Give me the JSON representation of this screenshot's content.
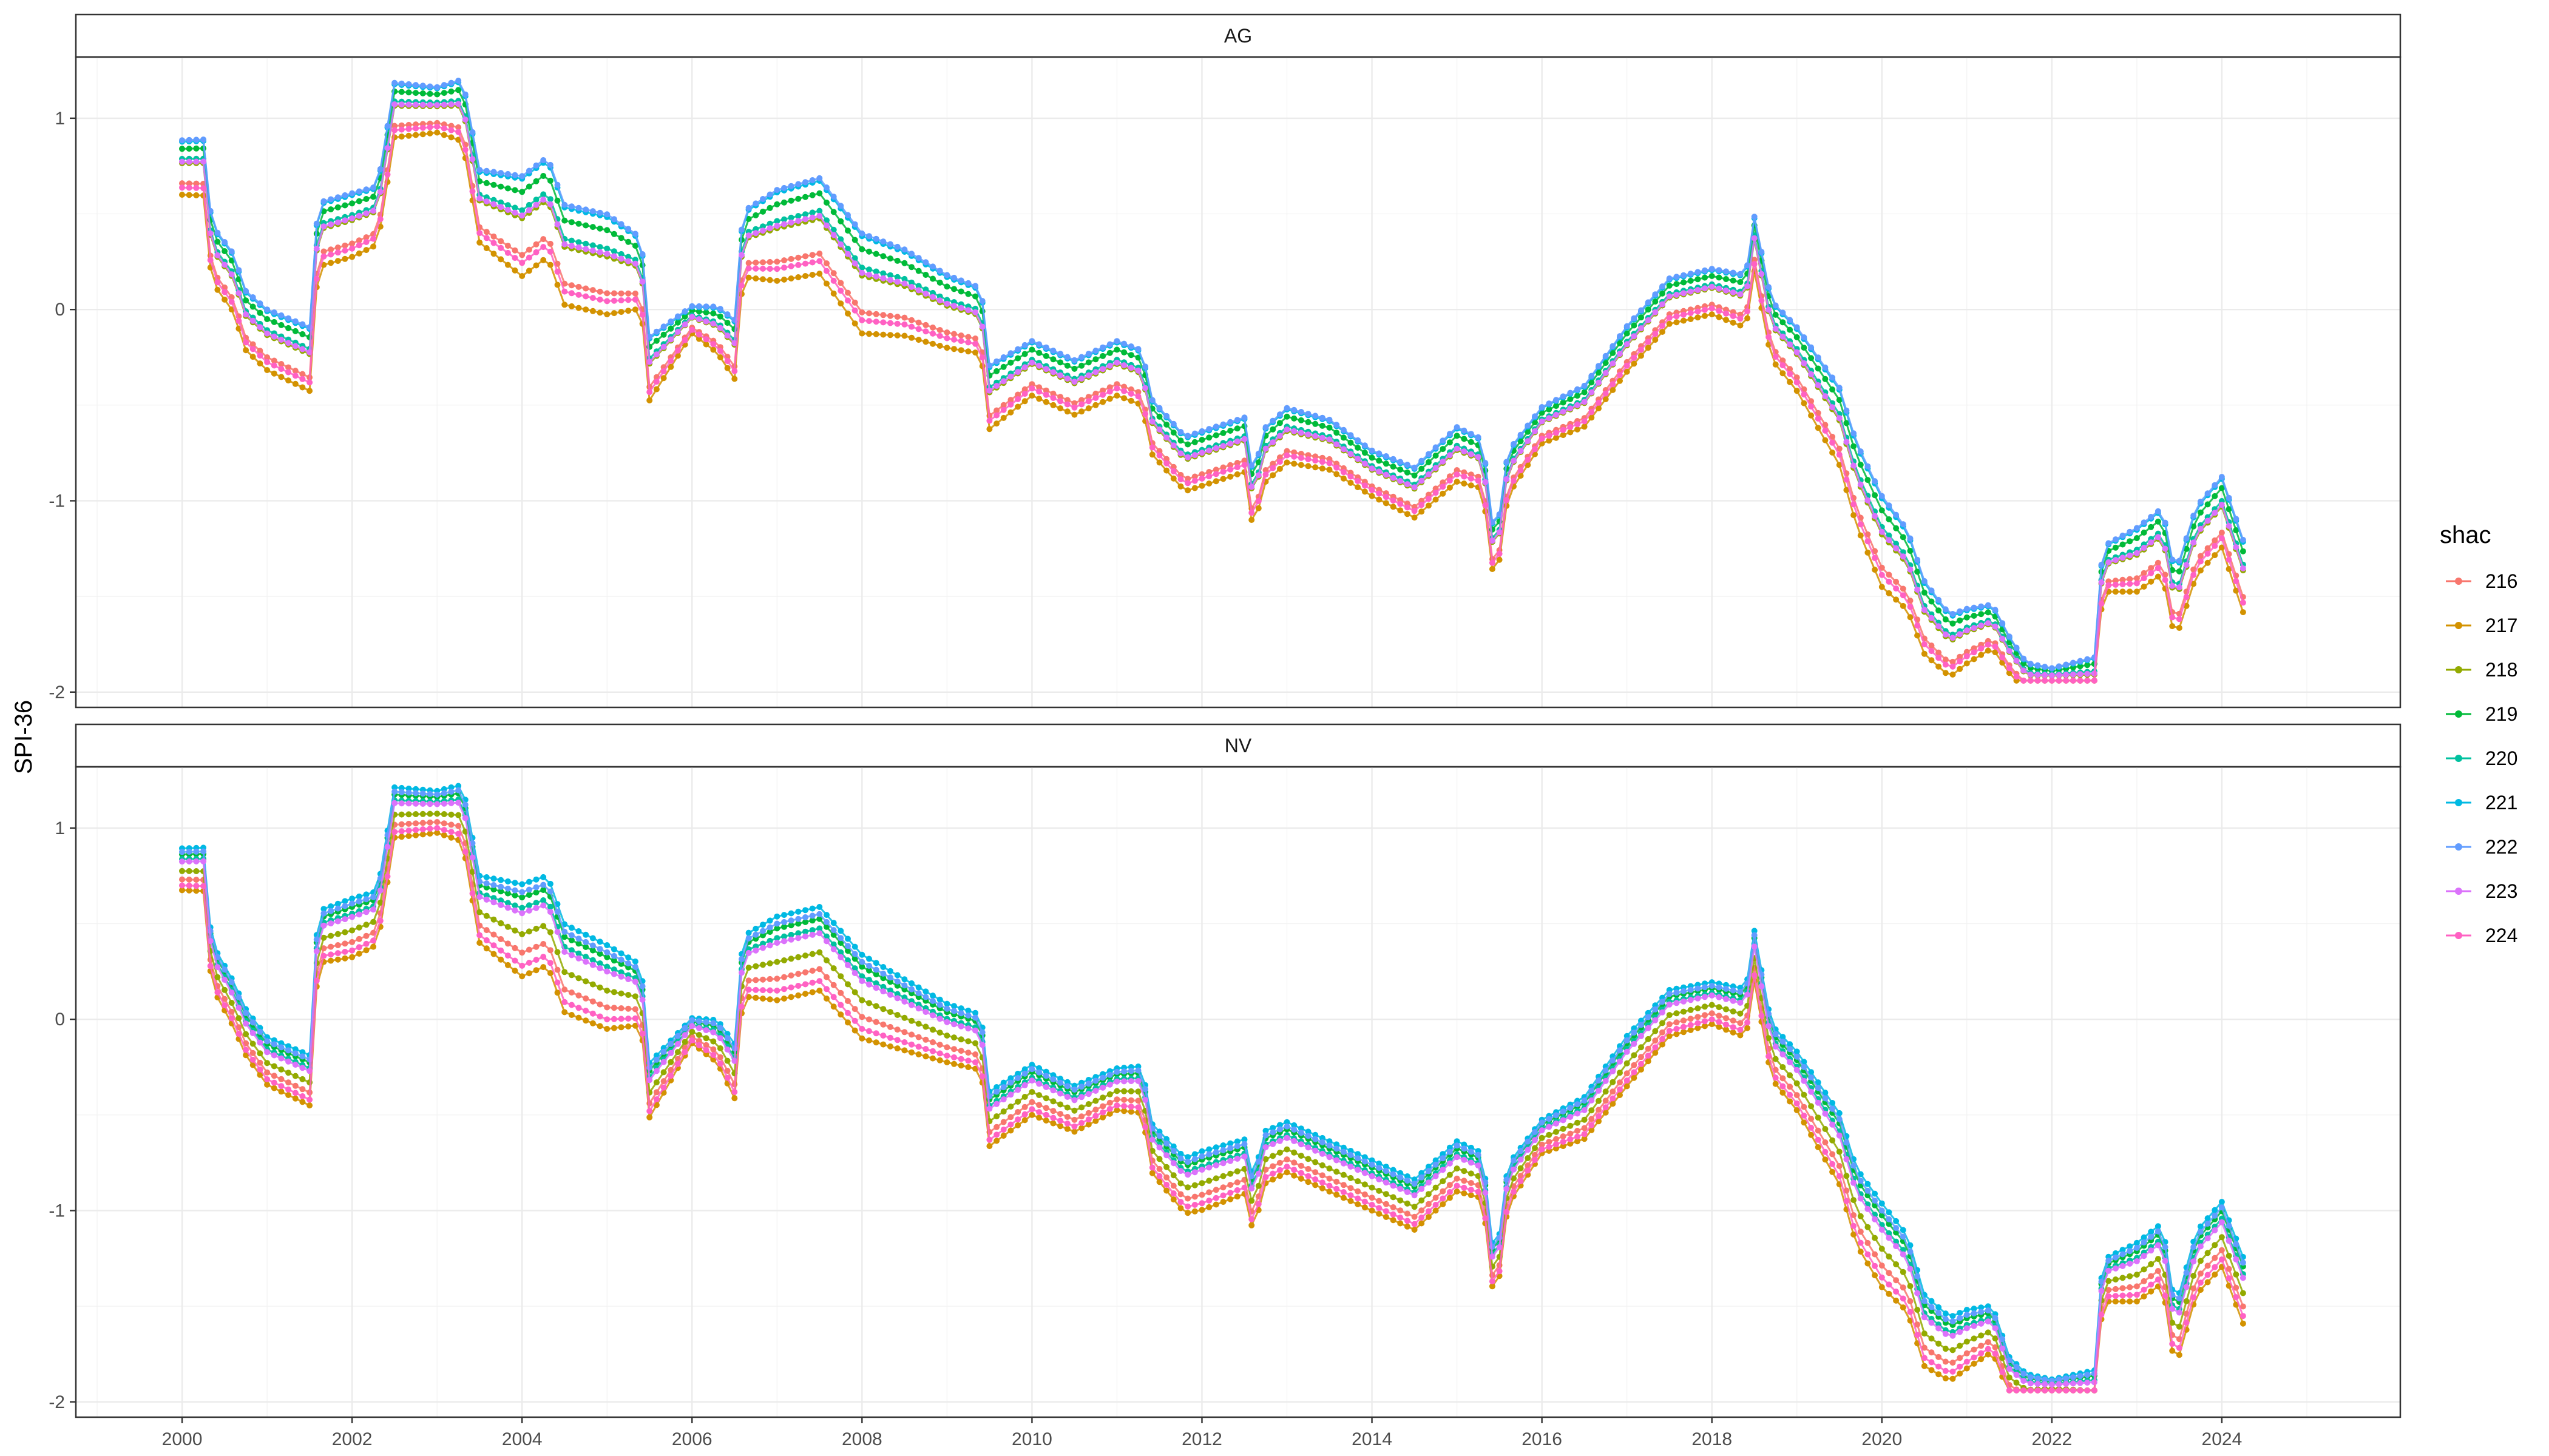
{
  "chart_data": {
    "type": "line",
    "ylabel": "SPI-36",
    "xlabel": "",
    "x_ticks": [
      2000,
      2002,
      2004,
      2006,
      2008,
      2010,
      2012,
      2014,
      2016,
      2018,
      2020,
      2022,
      2024
    ],
    "y_ticks": [
      -2,
      -1,
      0,
      1
    ],
    "xlim": [
      1998.75,
      2026.1
    ],
    "ylim": [
      -2.08,
      1.32
    ],
    "grid": true,
    "legend": {
      "title": "shac",
      "position": "right"
    },
    "colors": {
      "216": "#F8766D",
      "217": "#D39200",
      "218": "#93AA00",
      "219": "#00BA38",
      "220": "#00C19F",
      "221": "#00B9E3",
      "222": "#619CFF",
      "223": "#DB72FB",
      "224": "#FF61C3"
    },
    "series_names": [
      "216",
      "217",
      "218",
      "219",
      "220",
      "221",
      "222",
      "223",
      "224"
    ],
    "panels": [
      {
        "label": "AG",
        "base": [
          [
            2000.0,
            0.75
          ],
          [
            2000.25,
            0.75
          ],
          [
            2000.35,
            0.3
          ],
          [
            2000.6,
            0.15
          ],
          [
            2000.75,
            -0.05
          ],
          [
            2001.0,
            -0.15
          ],
          [
            2001.25,
            -0.2
          ],
          [
            2001.5,
            -0.25
          ],
          [
            2001.6,
            0.4
          ],
          [
            2002.0,
            0.45
          ],
          [
            2002.3,
            0.5
          ],
          [
            2002.5,
            1.05
          ],
          [
            2003.0,
            1.05
          ],
          [
            2003.3,
            1.05
          ],
          [
            2003.5,
            0.55
          ],
          [
            2004.0,
            0.45
          ],
          [
            2004.3,
            0.55
          ],
          [
            2004.5,
            0.3
          ],
          [
            2005.0,
            0.25
          ],
          [
            2005.4,
            0.2
          ],
          [
            2005.5,
            -0.3
          ],
          [
            2006.0,
            -0.05
          ],
          [
            2006.3,
            -0.1
          ],
          [
            2006.5,
            -0.2
          ],
          [
            2006.6,
            0.35
          ],
          [
            2007.0,
            0.4
          ],
          [
            2007.5,
            0.45
          ],
          [
            2008.0,
            0.15
          ],
          [
            2008.5,
            0.1
          ],
          [
            2009.0,
            0.0
          ],
          [
            2009.4,
            -0.05
          ],
          [
            2009.5,
            -0.45
          ],
          [
            2010.0,
            -0.3
          ],
          [
            2010.5,
            -0.4
          ],
          [
            2011.0,
            -0.3
          ],
          [
            2011.3,
            -0.35
          ],
          [
            2011.4,
            -0.6
          ],
          [
            2011.8,
            -0.8
          ],
          [
            2012.5,
            -0.7
          ],
          [
            2012.6,
            -1.0
          ],
          [
            2012.75,
            -0.75
          ],
          [
            2013.0,
            -0.65
          ],
          [
            2013.5,
            -0.7
          ],
          [
            2014.0,
            -0.85
          ],
          [
            2014.5,
            -0.95
          ],
          [
            2015.0,
            -0.75
          ],
          [
            2015.3,
            -0.8
          ],
          [
            2015.45,
            -1.35
          ],
          [
            2015.6,
            -0.85
          ],
          [
            2016.0,
            -0.6
          ],
          [
            2016.5,
            -0.5
          ],
          [
            2017.0,
            -0.2
          ],
          [
            2017.5,
            0.05
          ],
          [
            2018.0,
            0.1
          ],
          [
            2018.4,
            0.05
          ],
          [
            2018.5,
            0.35
          ],
          [
            2018.7,
            -0.1
          ],
          [
            2019.0,
            -0.25
          ],
          [
            2019.5,
            -0.6
          ],
          [
            2019.7,
            -0.9
          ],
          [
            2020.0,
            -1.2
          ],
          [
            2020.3,
            -1.35
          ],
          [
            2020.5,
            -1.6
          ],
          [
            2020.8,
            -1.75
          ],
          [
            2021.0,
            -1.7
          ],
          [
            2021.3,
            -1.65
          ],
          [
            2021.5,
            -1.8
          ],
          [
            2021.7,
            -1.92
          ],
          [
            2022.5,
            -1.92
          ],
          [
            2022.6,
            -1.35
          ],
          [
            2023.0,
            -1.3
          ],
          [
            2023.3,
            -1.2
          ],
          [
            2023.45,
            -1.55
          ],
          [
            2023.7,
            -1.2
          ],
          [
            2024.0,
            -1.05
          ],
          [
            2024.3,
            -1.45
          ]
        ],
        "spread": [
          [
            2000.0,
            0.3
          ],
          [
            2001.5,
            0.35
          ],
          [
            2002.0,
            0.35
          ],
          [
            2003.0,
            0.25
          ],
          [
            2004.0,
            0.55
          ],
          [
            2005.0,
            0.55
          ],
          [
            2006.0,
            0.15
          ],
          [
            2007.0,
            0.5
          ],
          [
            2008.0,
            0.55
          ],
          [
            2009.0,
            0.4
          ],
          [
            2010.0,
            0.3
          ],
          [
            2011.0,
            0.3
          ],
          [
            2012.0,
            0.3
          ],
          [
            2013.0,
            0.3
          ],
          [
            2014.0,
            0.25
          ],
          [
            2015.0,
            0.3
          ],
          [
            2016.0,
            0.2
          ],
          [
            2017.0,
            0.25
          ],
          [
            2018.0,
            0.25
          ],
          [
            2019.0,
            0.35
          ],
          [
            2020.0,
            0.5
          ],
          [
            2021.0,
            0.3
          ],
          [
            2022.0,
            0.1
          ],
          [
            2023.0,
            0.35
          ],
          [
            2024.3,
            0.4
          ]
        ],
        "offsets": [
          -0.6,
          -1.0,
          0.1,
          0.6,
          0.25,
          0.85,
          0.9,
          0.15,
          -0.75
        ]
      },
      {
        "label": "NV",
        "base": [
          [
            2000.0,
            0.8
          ],
          [
            2000.25,
            0.8
          ],
          [
            2000.35,
            0.3
          ],
          [
            2000.6,
            0.1
          ],
          [
            2000.75,
            -0.05
          ],
          [
            2001.0,
            -0.2
          ],
          [
            2001.25,
            -0.25
          ],
          [
            2001.5,
            -0.3
          ],
          [
            2001.6,
            0.45
          ],
          [
            2002.0,
            0.5
          ],
          [
            2002.3,
            0.55
          ],
          [
            2002.5,
            1.1
          ],
          [
            2003.0,
            1.1
          ],
          [
            2003.3,
            1.1
          ],
          [
            2003.5,
            0.6
          ],
          [
            2004.0,
            0.5
          ],
          [
            2004.3,
            0.55
          ],
          [
            2004.5,
            0.3
          ],
          [
            2005.0,
            0.2
          ],
          [
            2005.4,
            0.15
          ],
          [
            2005.5,
            -0.35
          ],
          [
            2006.0,
            -0.05
          ],
          [
            2006.3,
            -0.1
          ],
          [
            2006.5,
            -0.25
          ],
          [
            2006.6,
            0.3
          ],
          [
            2007.0,
            0.35
          ],
          [
            2007.5,
            0.4
          ],
          [
            2008.0,
            0.15
          ],
          [
            2008.5,
            0.05
          ],
          [
            2009.0,
            -0.05
          ],
          [
            2009.4,
            -0.1
          ],
          [
            2009.5,
            -0.5
          ],
          [
            2010.0,
            -0.35
          ],
          [
            2010.5,
            -0.45
          ],
          [
            2011.0,
            -0.35
          ],
          [
            2011.3,
            -0.35
          ],
          [
            2011.4,
            -0.65
          ],
          [
            2011.8,
            -0.85
          ],
          [
            2012.5,
            -0.75
          ],
          [
            2012.6,
            -0.95
          ],
          [
            2012.75,
            -0.7
          ],
          [
            2013.0,
            -0.65
          ],
          [
            2013.5,
            -0.75
          ],
          [
            2014.0,
            -0.85
          ],
          [
            2014.5,
            -0.95
          ],
          [
            2015.0,
            -0.75
          ],
          [
            2015.3,
            -0.8
          ],
          [
            2015.45,
            -1.4
          ],
          [
            2015.6,
            -0.85
          ],
          [
            2016.0,
            -0.6
          ],
          [
            2016.5,
            -0.5
          ],
          [
            2017.0,
            -0.2
          ],
          [
            2017.5,
            0.05
          ],
          [
            2018.0,
            0.1
          ],
          [
            2018.4,
            0.05
          ],
          [
            2018.5,
            0.35
          ],
          [
            2018.7,
            -0.15
          ],
          [
            2019.0,
            -0.3
          ],
          [
            2019.5,
            -0.65
          ],
          [
            2019.7,
            -0.95
          ],
          [
            2020.0,
            -1.15
          ],
          [
            2020.3,
            -1.3
          ],
          [
            2020.5,
            -1.6
          ],
          [
            2020.8,
            -1.7
          ],
          [
            2021.0,
            -1.65
          ],
          [
            2021.3,
            -1.6
          ],
          [
            2021.5,
            -1.85
          ],
          [
            2021.7,
            -1.92
          ],
          [
            2022.5,
            -1.92
          ],
          [
            2022.6,
            -1.35
          ],
          [
            2023.0,
            -1.3
          ],
          [
            2023.3,
            -1.2
          ],
          [
            2023.45,
            -1.65
          ],
          [
            2023.7,
            -1.25
          ],
          [
            2024.0,
            -1.1
          ],
          [
            2024.3,
            -1.45
          ]
        ],
        "spread": [
          [
            2000.0,
            0.25
          ],
          [
            2001.5,
            0.3
          ],
          [
            2002.0,
            0.35
          ],
          [
            2003.0,
            0.25
          ],
          [
            2004.0,
            0.55
          ],
          [
            2005.0,
            0.5
          ],
          [
            2006.0,
            0.15
          ],
          [
            2007.0,
            0.5
          ],
          [
            2008.0,
            0.5
          ],
          [
            2009.0,
            0.35
          ],
          [
            2010.0,
            0.3
          ],
          [
            2011.0,
            0.25
          ],
          [
            2012.0,
            0.35
          ],
          [
            2013.0,
            0.3
          ],
          [
            2014.0,
            0.3
          ],
          [
            2015.0,
            0.3
          ],
          [
            2016.0,
            0.2
          ],
          [
            2017.0,
            0.3
          ],
          [
            2018.0,
            0.25
          ],
          [
            2019.0,
            0.35
          ],
          [
            2020.0,
            0.5
          ],
          [
            2021.0,
            0.35
          ],
          [
            2022.0,
            0.1
          ],
          [
            2023.0,
            0.35
          ],
          [
            2024.3,
            0.4
          ]
        ],
        "offsets": [
          -0.55,
          -1.0,
          -0.2,
          0.5,
          0.3,
          0.75,
          0.6,
          0.2,
          -0.8
        ]
      }
    ]
  }
}
